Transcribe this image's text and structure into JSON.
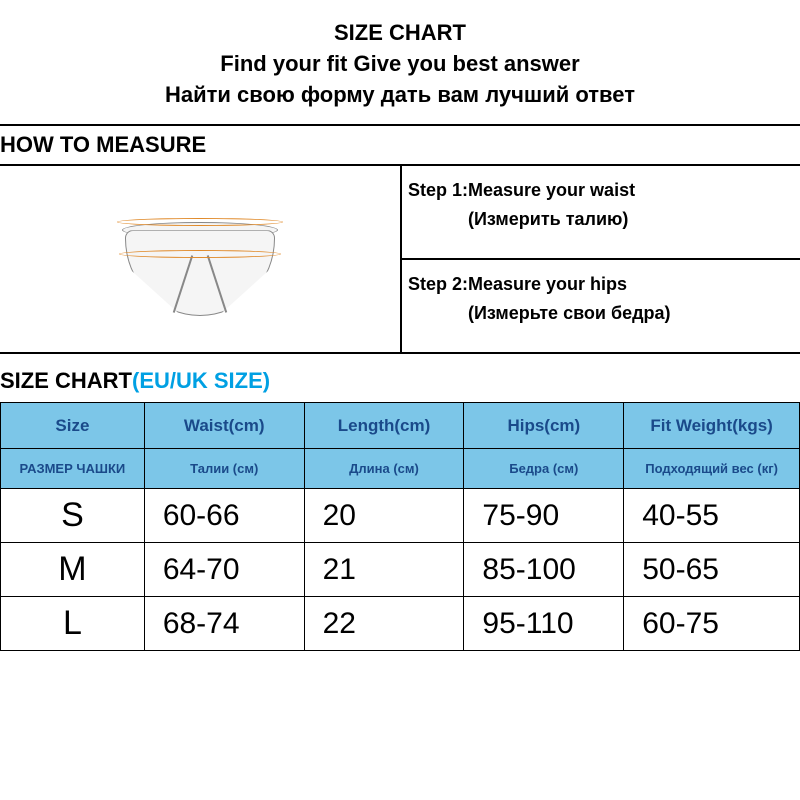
{
  "title": {
    "line1": "SIZE CHART",
    "line2": "Find your fit Give you best answer",
    "line3": "Найти свою форму дать вам лучший ответ"
  },
  "how_to_measure_label": "HOW TO MEASURE",
  "steps": {
    "step1": "Step 1:Measure your waist",
    "step1_ru": "(Измерить талию)",
    "step2": "Step 2:Measure your hips",
    "step2_ru": "(Измерьте свои бедра)"
  },
  "size_chart_heading": {
    "main": "SIZE CHART",
    "eu": "(EU/UK SIZE)"
  },
  "size_table": {
    "type": "table",
    "header_bg": "#7cc6e8",
    "header_color": "#1a4a8a",
    "border_color": "#000000",
    "row_bg": "#ffffff",
    "columns_en": [
      "Size",
      "Waist(cm)",
      "Length(cm)",
      "Hips(cm)",
      "Fit  Weight(kgs)"
    ],
    "columns_ru": [
      "РАЗМЕР ЧАШКИ",
      "Талии (см)",
      "Длина (см)",
      "Бедра (см)",
      "Подходящий вес (кг)"
    ],
    "rows": [
      [
        "S",
        "60-66",
        "20",
        "75-90",
        "40-55"
      ],
      [
        "M",
        "64-70",
        "21",
        "85-100",
        "50-65"
      ],
      [
        "L",
        "68-74",
        "22",
        "95-110",
        "60-75"
      ]
    ],
    "col_widths_pct": [
      18,
      20,
      20,
      20,
      22
    ],
    "header_en_fontsize": 17,
    "header_ru_fontsize": 13,
    "data_fontsize": 30,
    "size_col_fontsize": 34
  },
  "colors": {
    "background": "#ffffff",
    "text": "#000000",
    "accent_blue_text": "#00a0e3",
    "diagram_line": "#888888",
    "diagram_band": "#e08a2a"
  }
}
